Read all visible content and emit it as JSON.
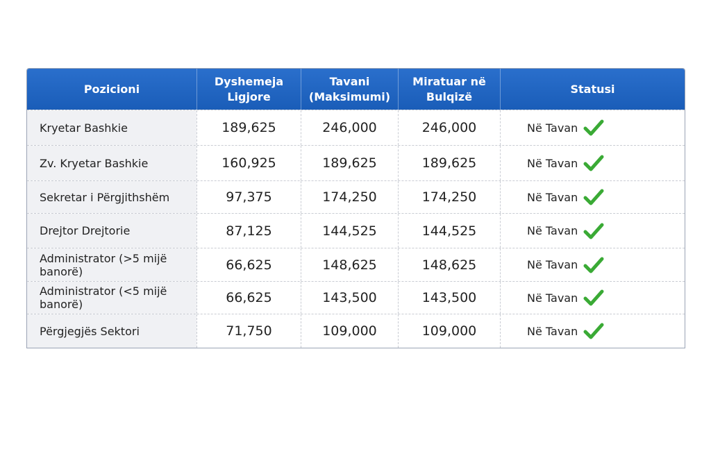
{
  "table": {
    "headers": [
      "Pozicioni",
      "Dyshemeja\nLigjore",
      "Tavani\n(Maksimumi)",
      "Miratuar në\nBulqizë",
      "Statusi"
    ],
    "rows": [
      {
        "position": "Kryetar Bashkie",
        "floor": "189,625",
        "ceiling": "246,000",
        "approved": "246,000",
        "status": "Në Tavan"
      },
      {
        "position": "Zv. Kryetar Bashkie",
        "floor": "160,925",
        "ceiling": "189,625",
        "approved": "189,625",
        "status": "Në Tavan"
      },
      {
        "position": "Sekretar i Përgjithshëm",
        "floor": "97,375",
        "ceiling": "174,250",
        "approved": "174,250",
        "status": "Në Tavan"
      },
      {
        "position": "Drejtor Drejtorie",
        "floor": "87,125",
        "ceiling": "144,525",
        "approved": "144,525",
        "status": "Në Tavan"
      },
      {
        "position": "Administrator (>5 mijë banorë)",
        "floor": "66,625",
        "ceiling": "148,625",
        "approved": "148,625",
        "status": "Në Tavan"
      },
      {
        "position": "Administrator (<5 mijë banorë)",
        "floor": "66,625",
        "ceiling": "143,500",
        "approved": "143,500",
        "status": "Në Tavan"
      },
      {
        "position": "Përgjegjës Sektori",
        "floor": "71,750",
        "ceiling": "109,000",
        "approved": "109,000",
        "status": "Në Tavan"
      }
    ],
    "status_icon": "checkmark-icon",
    "colors": {
      "header": "#1f63c0",
      "check": "#3aaa35"
    }
  }
}
